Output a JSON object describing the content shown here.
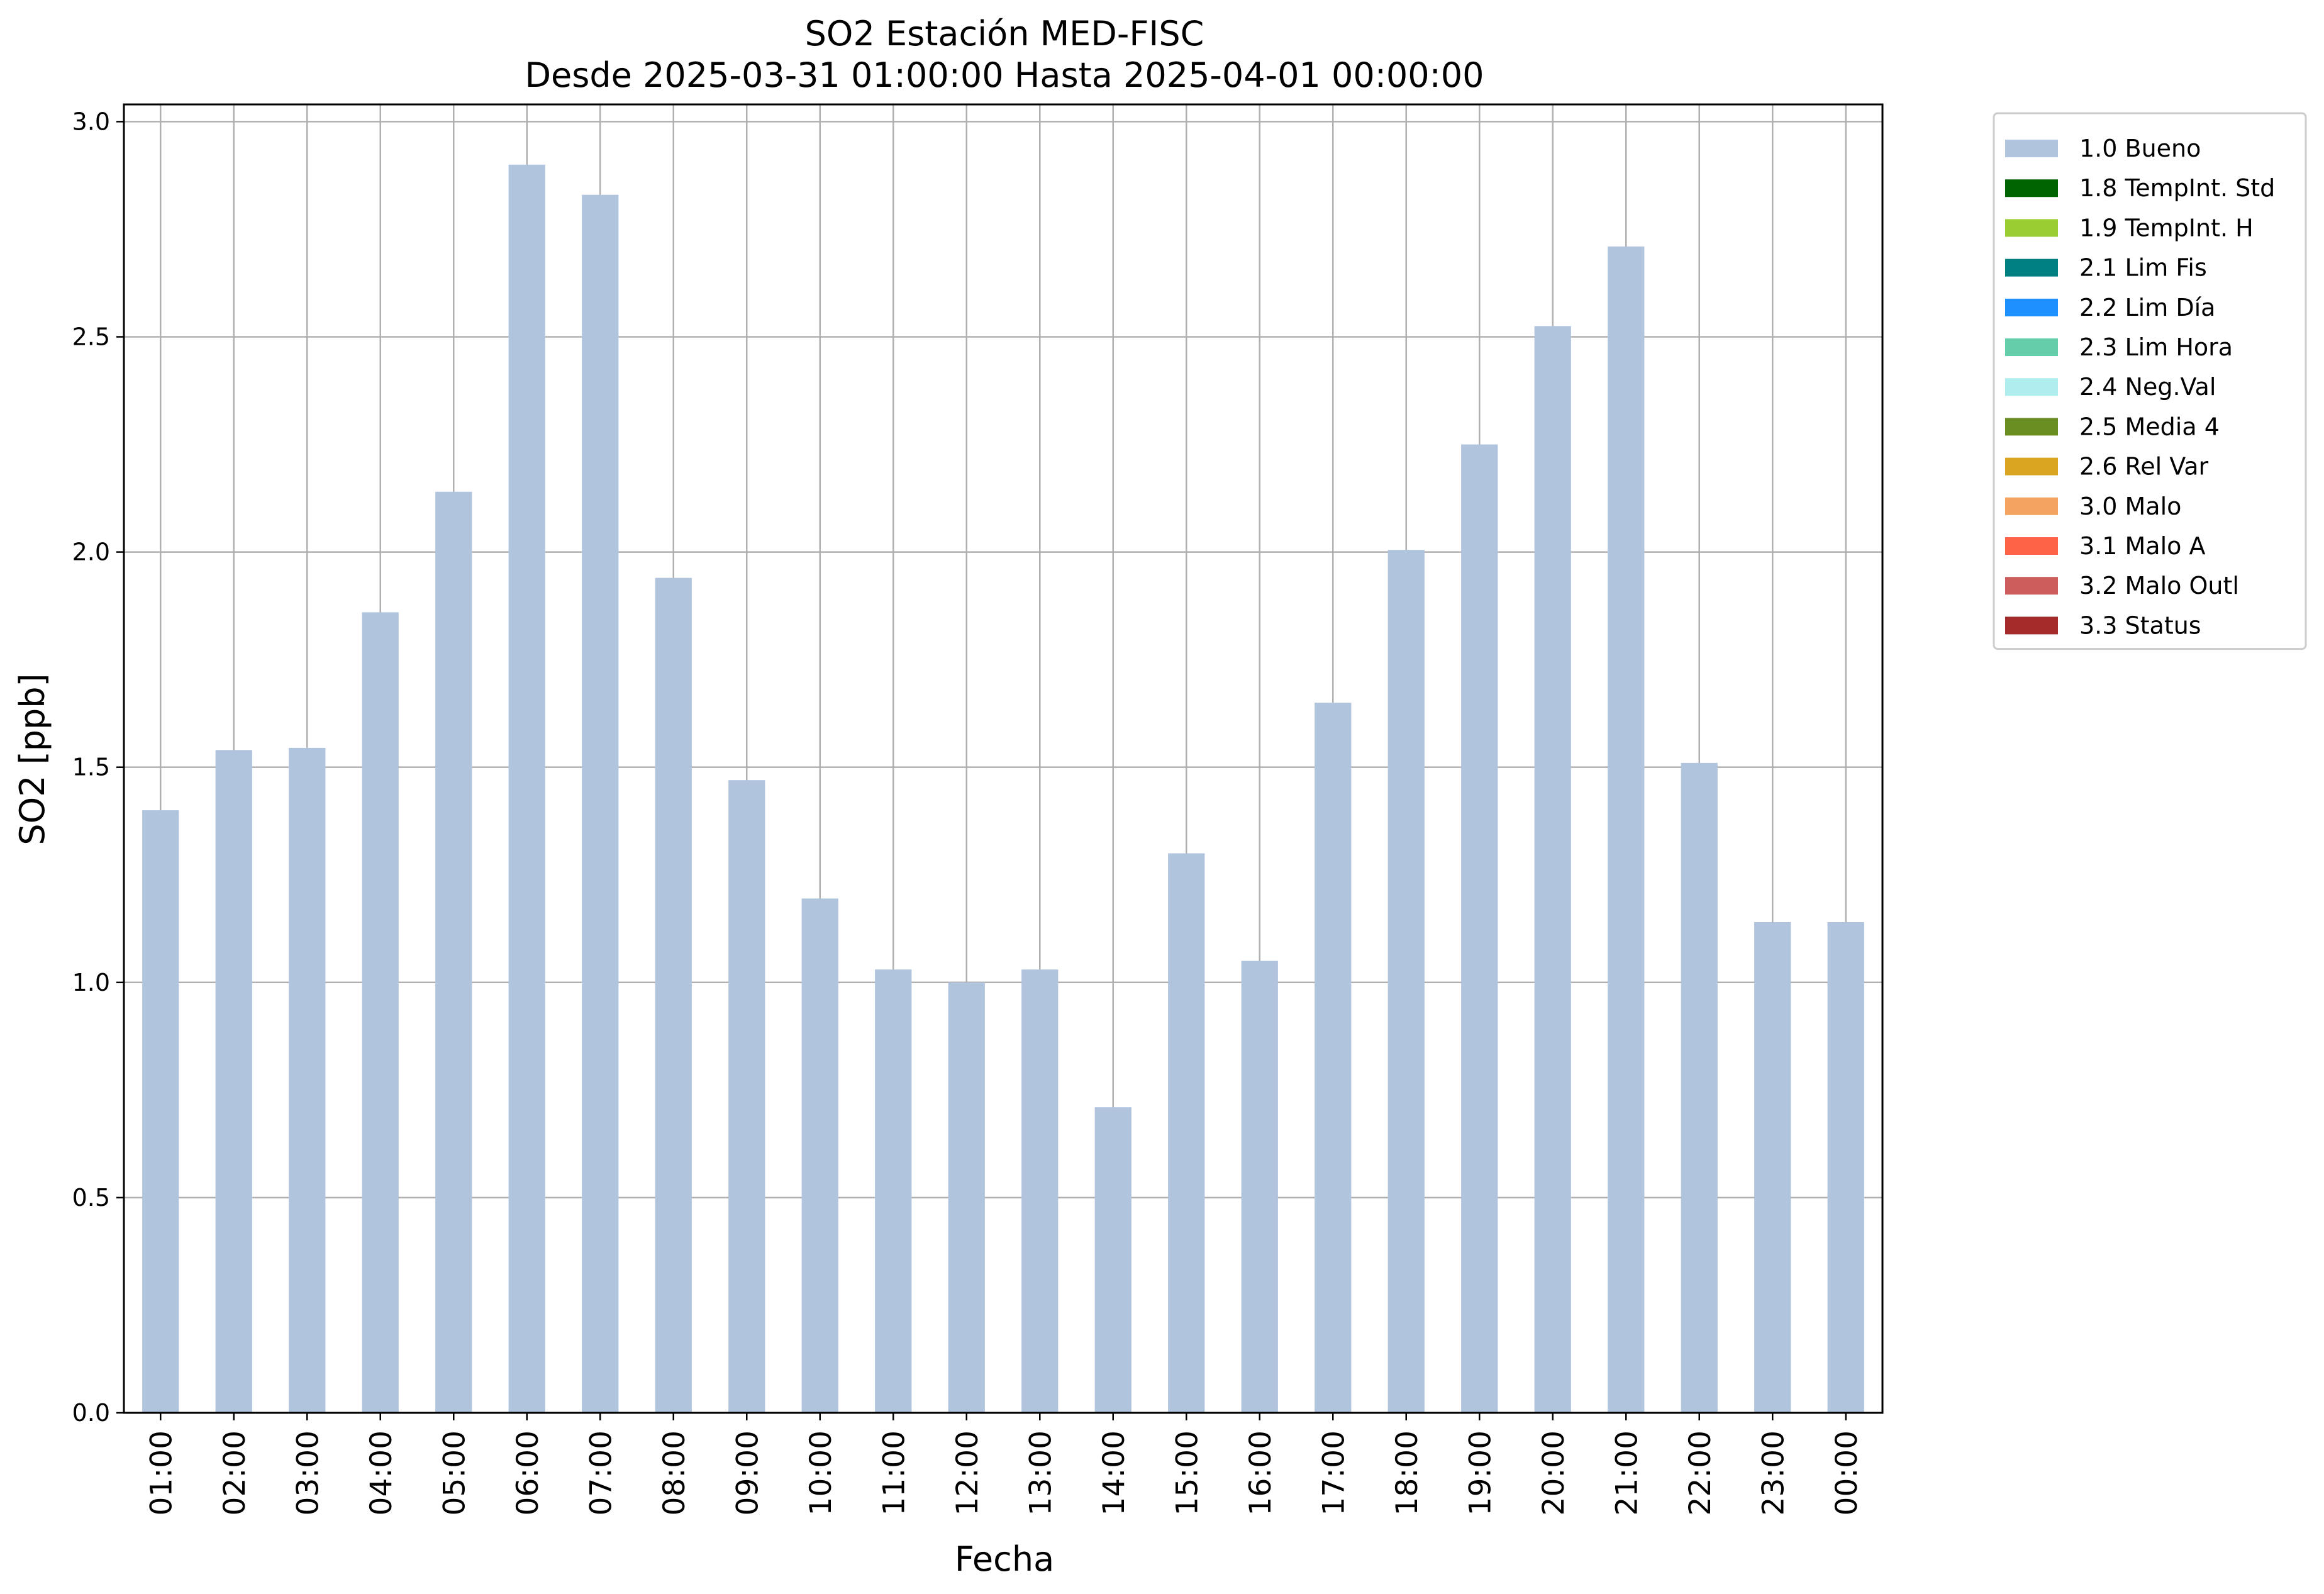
{
  "chart_data": {
    "type": "bar",
    "title": "SO2 Estación MED-FISC",
    "subtitle": "Desde 2025-03-31 01:00:00 Hasta 2025-04-01 00:00:00",
    "xlabel": "Fecha",
    "ylabel": "SO2 [ppb]",
    "ylim": [
      0,
      3.04
    ],
    "yticks": [
      "0.0",
      "0.5",
      "1.0",
      "1.5",
      "2.0",
      "2.5",
      "3.0"
    ],
    "grid": true,
    "legend_position": "outside-right-top",
    "categories": [
      "01:00",
      "02:00",
      "03:00",
      "04:00",
      "05:00",
      "06:00",
      "07:00",
      "08:00",
      "09:00",
      "10:00",
      "11:00",
      "12:00",
      "13:00",
      "14:00",
      "15:00",
      "16:00",
      "17:00",
      "18:00",
      "19:00",
      "20:00",
      "21:00",
      "22:00",
      "23:00",
      "00:00"
    ],
    "series": [
      {
        "name": "1.0 Bueno",
        "color": "#b0c4de",
        "values": [
          1.4,
          1.54,
          1.545,
          1.86,
          2.14,
          2.9,
          2.83,
          1.94,
          1.47,
          1.195,
          1.03,
          1.0,
          1.03,
          0.71,
          1.3,
          1.05,
          1.65,
          2.005,
          2.25,
          2.525,
          2.71,
          1.51,
          1.14,
          1.14
        ]
      }
    ],
    "legend": [
      {
        "label": "1.0 Bueno",
        "color": "#b0c4de"
      },
      {
        "label": "1.8 TempInt. Std",
        "color": "#006400"
      },
      {
        "label": "1.9 TempInt. H",
        "color": "#9acd32"
      },
      {
        "label": "2.1 Lim Fis",
        "color": "#008080"
      },
      {
        "label": "2.2 Lim Día",
        "color": "#1e90ff"
      },
      {
        "label": "2.3 Lim Hora",
        "color": "#66cdaa"
      },
      {
        "label": "2.4 Neg.Val",
        "color": "#afeeee"
      },
      {
        "label": "2.5 Media 4",
        "color": "#6b8e23"
      },
      {
        "label": "2.6 Rel Var",
        "color": "#daa520"
      },
      {
        "label": "3.0 Malo",
        "color": "#f4a460"
      },
      {
        "label": "3.1 Malo A",
        "color": "#ff6347"
      },
      {
        "label": "3.2 Malo Outl",
        "color": "#cd5c5c"
      },
      {
        "label": "3.3 Status",
        "color": "#a52a2a"
      }
    ]
  }
}
